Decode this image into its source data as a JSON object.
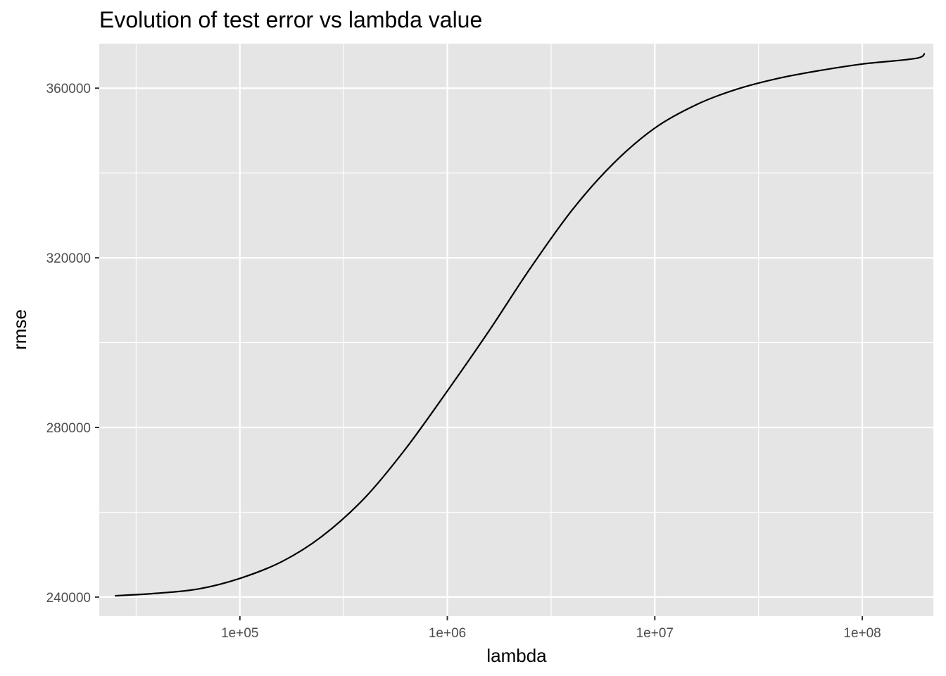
{
  "chart_data": {
    "type": "line",
    "title": "Evolution of test error vs lambda value",
    "xlabel": "lambda",
    "ylabel": "rmse",
    "xscale": "log10",
    "xlim": [
      21000,
      220000000
    ],
    "ylim": [
      235500,
      370500
    ],
    "grid": true,
    "legend": "none",
    "x_ticks": [
      100000,
      1000000,
      10000000,
      100000000
    ],
    "x_tick_labels": [
      "1e+05",
      "1e+06",
      "1e+07",
      "1e+08"
    ],
    "y_ticks": [
      240000,
      280000,
      320000,
      360000
    ],
    "y_tick_labels": [
      "240000",
      "280000",
      "320000",
      "360000"
    ],
    "series": [
      {
        "color": "#000000",
        "x": [
          25000,
          40000,
          63000,
          100000,
          160000,
          250000,
          400000,
          630000,
          1000000,
          1600000,
          2500000,
          4000000,
          6300000,
          10000000,
          16000000,
          25000000,
          40000000,
          63000000,
          100000000,
          180000000,
          200000000
        ],
        "y": [
          240300,
          240900,
          241900,
          244400,
          248400,
          254400,
          263400,
          275000,
          288600,
          303000,
          317400,
          331300,
          342200,
          350600,
          356200,
          359800,
          362400,
          364200,
          365700,
          367000,
          368200
        ]
      }
    ]
  },
  "colors": {
    "panel_background": "#e5e5e5",
    "grid_line": "#ffffff",
    "line": "#000000"
  }
}
